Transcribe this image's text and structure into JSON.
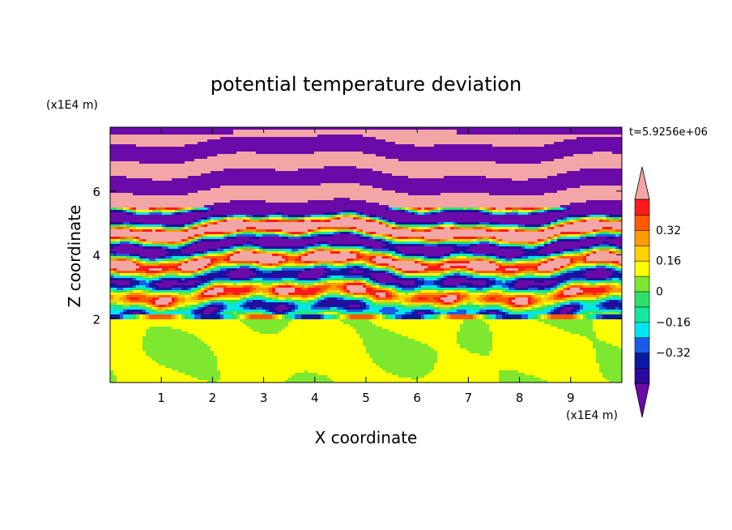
{
  "chart_data": {
    "type": "heatmap",
    "title": "potential temperature deviation",
    "xlabel": "X coordinate",
    "ylabel": "Z coordinate",
    "x_unit": "(x1E4 m)",
    "y_unit": "(x1E4 m)",
    "time_label": "t=5.9256e+06",
    "xlim": [
      0,
      10
    ],
    "ylim": [
      0,
      8
    ],
    "x_ticks": [
      1,
      2,
      3,
      4,
      5,
      6,
      7,
      8,
      9
    ],
    "y_ticks": [
      2,
      4,
      6
    ],
    "colorbar": {
      "levels": [
        -0.48,
        -0.4,
        -0.32,
        -0.24,
        -0.16,
        -0.08,
        0,
        0.08,
        0.16,
        0.24,
        0.32,
        0.4,
        0.48
      ],
      "tick_labels": [
        "0.32",
        "0.16",
        "0",
        "−0.16",
        "−0.32"
      ],
      "tick_values": [
        0.32,
        0.16,
        0,
        -0.16,
        -0.32
      ],
      "under_color": "#6a0aa8",
      "over_color": "#f4a6a6",
      "colors_low_to_high": [
        "#2a0a9a",
        "#0a1aa0",
        "#1a5ce8",
        "#00e5f0",
        "#14e8a0",
        "#2ee06a",
        "#7ee830",
        "#ffff00",
        "#ffd200",
        "#ff9a00",
        "#ff5a00",
        "#ff1a1a"
      ]
    },
    "regions": [
      {
        "z_range": [
          0,
          1.95
        ],
        "dominant": "#7ee830",
        "secondary": "#2ee06a",
        "description_values": [
          0,
          0.08
        ]
      },
      {
        "z_range": [
          1.95,
          5.5
        ],
        "dominant": "mixed",
        "description_values": [
          -0.48,
          0.48
        ]
      },
      {
        "z_range": [
          5.5,
          8
        ],
        "dominant": "#f4a6a6",
        "secondary": "#6a0aa8",
        "description_values": [
          -0.48,
          0.48
        ]
      }
    ]
  }
}
